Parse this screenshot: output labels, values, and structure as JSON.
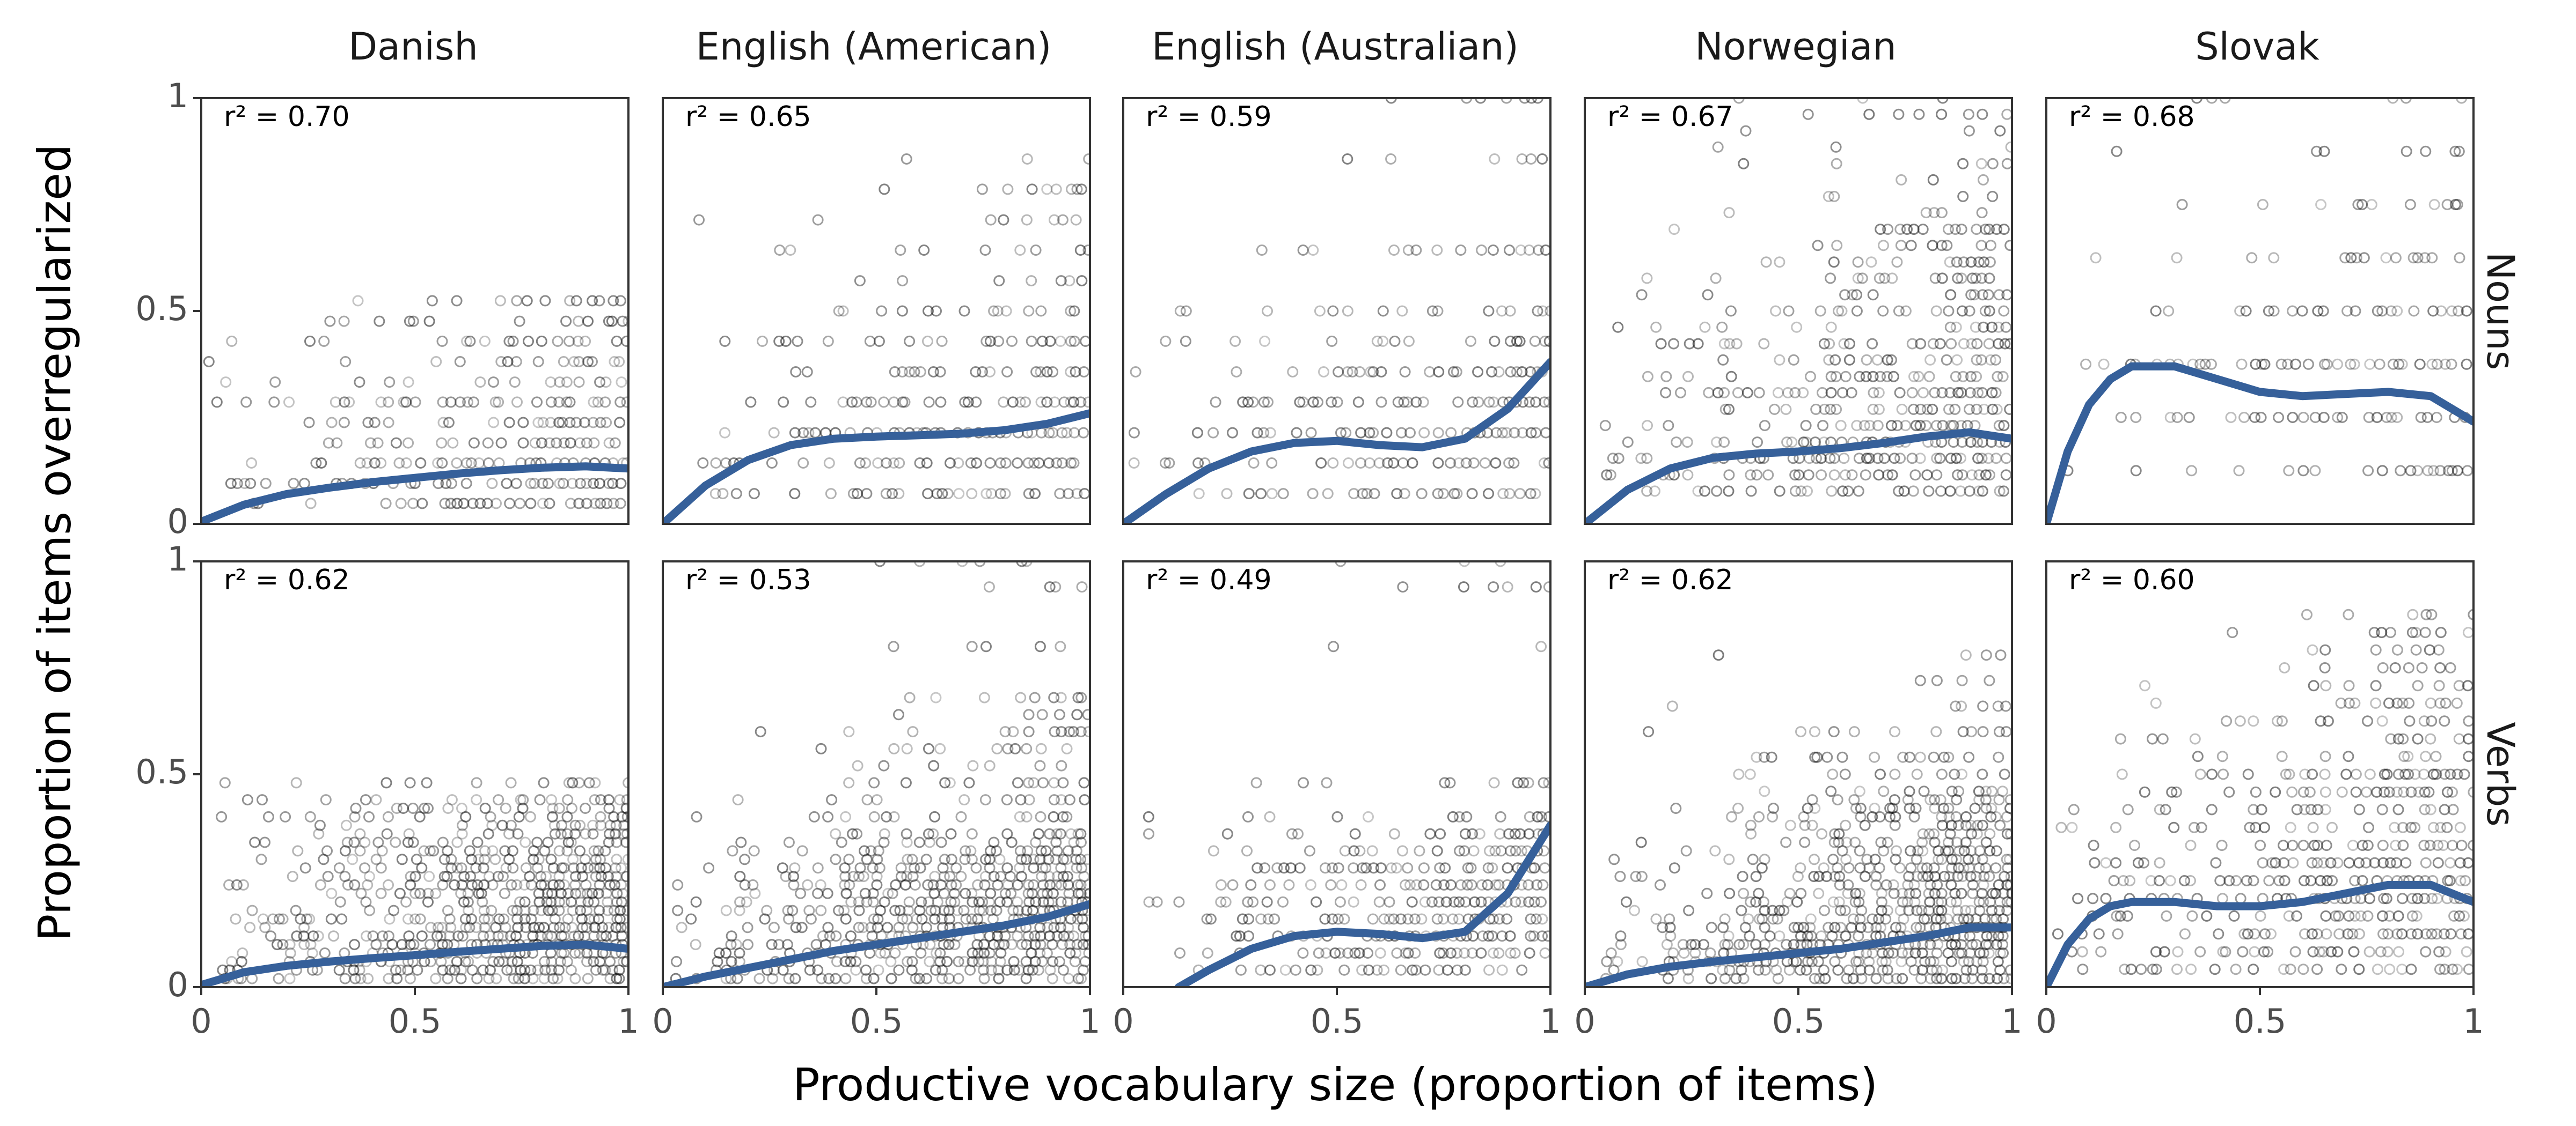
{
  "chart_data": {
    "type": "scatter",
    "columns": [
      "Danish",
      "English (American)",
      "English (Australian)",
      "Norwegian",
      "Slovak"
    ],
    "rows": [
      "Nouns",
      "Verbs"
    ],
    "xlabel": "Productive vocabulary size (proportion of items)",
    "ylabel": "Proportion of items overregularized",
    "xlim": [
      0,
      1
    ],
    "ylim": [
      0,
      1
    ],
    "x_ticks": [
      0,
      0.5,
      1
    ],
    "x_tick_labels": [
      "0",
      "0.5",
      "1"
    ],
    "y_ticks": [
      0,
      0.5,
      1
    ],
    "y_tick_labels": [
      "0",
      "0.5",
      "1"
    ],
    "grid": false,
    "colors": {
      "smooth_line": "#36609A",
      "points": "#000000",
      "frame": "#333333"
    },
    "panels": [
      {
        "row": "Nouns",
        "column": "Danish",
        "r2_label": "r² = 0.70",
        "y_levels": [
          0.048,
          0.095,
          0.143,
          0.19,
          0.238,
          0.286,
          0.333,
          0.381,
          0.429,
          0.476,
          0.524
        ],
        "x_start": 0.02,
        "smooth_x": [
          0,
          0.1,
          0.2,
          0.3,
          0.4,
          0.5,
          0.6,
          0.7,
          0.8,
          0.9,
          1.0
        ],
        "smooth_y": [
          0.005,
          0.045,
          0.07,
          0.085,
          0.098,
          0.108,
          0.118,
          0.126,
          0.132,
          0.135,
          0.13
        ]
      },
      {
        "row": "Nouns",
        "column": "English (American)",
        "r2_label": "r² = 0.65",
        "y_levels": [
          0.071,
          0.143,
          0.214,
          0.286,
          0.357,
          0.429,
          0.5,
          0.571,
          0.643,
          0.714,
          0.786,
          0.857
        ],
        "x_start": 0.03,
        "smooth_x": [
          0,
          0.1,
          0.2,
          0.3,
          0.4,
          0.5,
          0.6,
          0.7,
          0.8,
          0.9,
          1.0
        ],
        "smooth_y": [
          0.0,
          0.09,
          0.15,
          0.185,
          0.2,
          0.205,
          0.208,
          0.212,
          0.22,
          0.235,
          0.26
        ]
      },
      {
        "row": "Nouns",
        "column": "English (Australian)",
        "r2_label": "r² = 0.59",
        "y_levels": [
          0.071,
          0.143,
          0.214,
          0.286,
          0.357,
          0.429,
          0.5,
          0.643,
          0.857,
          1.0
        ],
        "x_start": 0.03,
        "smooth_x": [
          0,
          0.1,
          0.2,
          0.3,
          0.4,
          0.5,
          0.6,
          0.7,
          0.8,
          0.9,
          1.0
        ],
        "smooth_y": [
          0.0,
          0.07,
          0.13,
          0.17,
          0.19,
          0.195,
          0.185,
          0.18,
          0.2,
          0.27,
          0.38
        ]
      },
      {
        "row": "Nouns",
        "column": "Norwegian",
        "r2_label": "r² = 0.67",
        "y_levels": [
          0.077,
          0.115,
          0.154,
          0.192,
          0.231,
          0.269,
          0.308,
          0.346,
          0.385,
          0.423,
          0.462,
          0.5,
          0.538,
          0.577,
          0.615,
          0.654,
          0.692,
          0.731,
          0.769,
          0.808,
          0.846,
          0.885,
          0.923,
          0.962,
          1.0
        ],
        "x_start": 0.03,
        "smooth_x": [
          0,
          0.1,
          0.2,
          0.3,
          0.4,
          0.5,
          0.6,
          0.7,
          0.8,
          0.9,
          1.0
        ],
        "smooth_y": [
          0.0,
          0.08,
          0.13,
          0.155,
          0.165,
          0.17,
          0.178,
          0.19,
          0.205,
          0.215,
          0.2
        ]
      },
      {
        "row": "Nouns",
        "column": "Slovak",
        "r2_label": "r² = 0.68",
        "y_levels": [
          0.125,
          0.25,
          0.375,
          0.5,
          0.625,
          0.75,
          0.875,
          1.0
        ],
        "x_start": 0.05,
        "smooth_x": [
          0,
          0.05,
          0.1,
          0.15,
          0.2,
          0.3,
          0.4,
          0.5,
          0.6,
          0.7,
          0.8,
          0.9,
          1.0
        ],
        "smooth_y": [
          0.0,
          0.17,
          0.28,
          0.34,
          0.37,
          0.37,
          0.34,
          0.31,
          0.3,
          0.305,
          0.31,
          0.3,
          0.24
        ]
      },
      {
        "row": "Verbs",
        "column": "Danish",
        "r2_label": "r² = 0.62",
        "y_levels": [
          0.02,
          0.04,
          0.06,
          0.08,
          0.1,
          0.12,
          0.14,
          0.16,
          0.18,
          0.2,
          0.22,
          0.24,
          0.26,
          0.28,
          0.3,
          0.32,
          0.34,
          0.36,
          0.38,
          0.4,
          0.42,
          0.44,
          0.48
        ],
        "x_start": 0.05,
        "smooth_x": [
          0,
          0.1,
          0.2,
          0.3,
          0.4,
          0.5,
          0.6,
          0.7,
          0.8,
          0.9,
          1.0
        ],
        "smooth_y": [
          0.005,
          0.035,
          0.05,
          0.06,
          0.068,
          0.075,
          0.083,
          0.09,
          0.097,
          0.1,
          0.09
        ]
      },
      {
        "row": "Verbs",
        "column": "English (American)",
        "r2_label": "r² = 0.53",
        "y_levels": [
          0.02,
          0.04,
          0.06,
          0.08,
          0.1,
          0.12,
          0.14,
          0.16,
          0.18,
          0.2,
          0.22,
          0.24,
          0.26,
          0.28,
          0.3,
          0.32,
          0.34,
          0.36,
          0.4,
          0.44,
          0.48,
          0.52,
          0.56,
          0.6,
          0.64,
          0.68,
          0.8,
          0.94,
          1.0
        ],
        "x_start": 0.03,
        "smooth_x": [
          0,
          0.1,
          0.2,
          0.3,
          0.4,
          0.5,
          0.6,
          0.7,
          0.8,
          0.9,
          1.0
        ],
        "smooth_y": [
          0.0,
          0.025,
          0.045,
          0.065,
          0.085,
          0.1,
          0.115,
          0.13,
          0.145,
          0.165,
          0.195
        ]
      },
      {
        "row": "Verbs",
        "column": "English (Australian)",
        "r2_label": "r² = 0.49",
        "y_levels": [
          0.04,
          0.08,
          0.12,
          0.16,
          0.2,
          0.24,
          0.28,
          0.32,
          0.36,
          0.4,
          0.48,
          0.8,
          0.94,
          1.0
        ],
        "x_start": 0.03,
        "smooth_x": [
          0.13,
          0.2,
          0.3,
          0.4,
          0.5,
          0.6,
          0.7,
          0.8,
          0.9,
          1.0
        ],
        "smooth_y": [
          0.0,
          0.04,
          0.09,
          0.12,
          0.13,
          0.125,
          0.115,
          0.13,
          0.22,
          0.38
        ]
      },
      {
        "row": "Verbs",
        "column": "Norwegian",
        "r2_label": "r² = 0.62",
        "y_levels": [
          0.02,
          0.04,
          0.06,
          0.08,
          0.1,
          0.12,
          0.14,
          0.16,
          0.18,
          0.2,
          0.22,
          0.24,
          0.26,
          0.28,
          0.3,
          0.32,
          0.34,
          0.36,
          0.38,
          0.4,
          0.42,
          0.44,
          0.46,
          0.5,
          0.54,
          0.6,
          0.66,
          0.72,
          0.78
        ],
        "x_start": 0.05,
        "smooth_x": [
          0,
          0.1,
          0.2,
          0.3,
          0.4,
          0.5,
          0.6,
          0.7,
          0.8,
          0.9,
          1.0
        ],
        "smooth_y": [
          0.0,
          0.03,
          0.048,
          0.06,
          0.07,
          0.08,
          0.09,
          0.105,
          0.12,
          0.14,
          0.14
        ]
      },
      {
        "row": "Verbs",
        "column": "Slovak",
        "r2_label": "r² = 0.60",
        "y_levels": [
          0.042,
          0.083,
          0.125,
          0.167,
          0.208,
          0.25,
          0.292,
          0.333,
          0.375,
          0.417,
          0.458,
          0.5,
          0.542,
          0.583,
          0.625,
          0.667,
          0.708,
          0.75,
          0.792,
          0.833,
          0.875
        ],
        "x_start": 0.03,
        "smooth_x": [
          0,
          0.05,
          0.1,
          0.15,
          0.2,
          0.3,
          0.4,
          0.5,
          0.6,
          0.7,
          0.8,
          0.9,
          1.0
        ],
        "smooth_y": [
          0.0,
          0.1,
          0.16,
          0.19,
          0.2,
          0.2,
          0.19,
          0.19,
          0.2,
          0.22,
          0.24,
          0.24,
          0.2
        ]
      }
    ]
  }
}
